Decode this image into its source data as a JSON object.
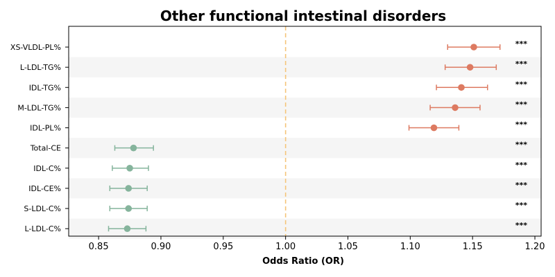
{
  "chart_data": {
    "type": "forest",
    "title": "Other functional intestinal disorders",
    "xlabel": "Odds Ratio (OR)",
    "xlim": [
      0.826,
      1.205
    ],
    "xticks": [
      "0.85",
      "0.90",
      "0.95",
      "1.00",
      "1.05",
      "1.10",
      "1.15",
      "1.20"
    ],
    "reference_line": 1.0,
    "reference_color": "#f5c57a",
    "row_band_color": "#f5f5f5",
    "rows": [
      {
        "label": "XS-VLDL-PL%",
        "or": 1.151,
        "lo": 1.13,
        "hi": 1.172,
        "sig": "***",
        "color": "#dd7a61"
      },
      {
        "label": "L-LDL-TG%",
        "or": 1.148,
        "lo": 1.128,
        "hi": 1.169,
        "sig": "***",
        "color": "#dd7a61"
      },
      {
        "label": "IDL-TG%",
        "or": 1.141,
        "lo": 1.121,
        "hi": 1.162,
        "sig": "***",
        "color": "#dd7a61"
      },
      {
        "label": "M-LDL-TG%",
        "or": 1.136,
        "lo": 1.116,
        "hi": 1.156,
        "sig": "***",
        "color": "#dd7a61"
      },
      {
        "label": "IDL-PL%",
        "or": 1.119,
        "lo": 1.099,
        "hi": 1.139,
        "sig": "***",
        "color": "#dd7a61"
      },
      {
        "label": "Total-CE",
        "or": 0.878,
        "lo": 0.863,
        "hi": 0.894,
        "sig": "***",
        "color": "#85b49c"
      },
      {
        "label": "IDL-C%",
        "or": 0.875,
        "lo": 0.861,
        "hi": 0.89,
        "sig": "***",
        "color": "#85b49c"
      },
      {
        "label": "IDL-CE%",
        "or": 0.874,
        "lo": 0.859,
        "hi": 0.889,
        "sig": "***",
        "color": "#85b49c"
      },
      {
        "label": "S-LDL-C%",
        "or": 0.874,
        "lo": 0.859,
        "hi": 0.889,
        "sig": "***",
        "color": "#85b49c"
      },
      {
        "label": "L-LDL-C%",
        "or": 0.873,
        "lo": 0.858,
        "hi": 0.888,
        "sig": "***",
        "color": "#85b49c"
      }
    ]
  }
}
